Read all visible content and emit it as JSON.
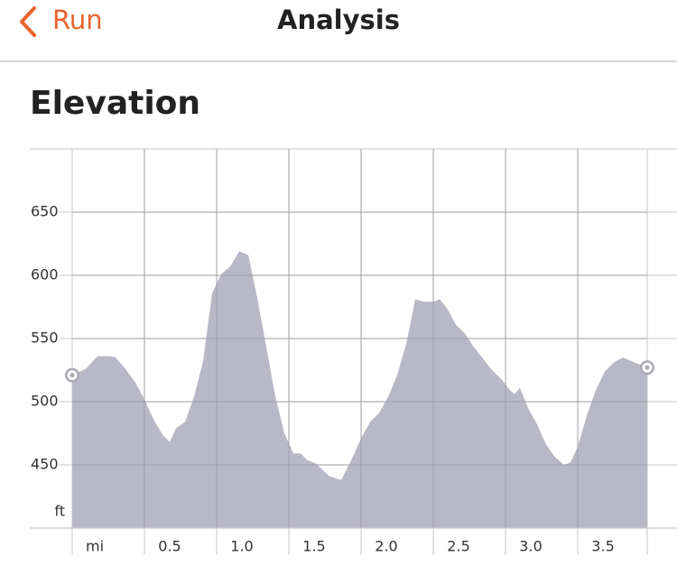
{
  "header": {
    "back": "Run",
    "title": "Analysis"
  },
  "section_title": "Elevation",
  "chart_data": {
    "type": "area",
    "x": [
      0,
      0.094,
      0.175,
      0.263,
      0.3,
      0.375,
      0.438,
      0.5,
      0.563,
      0.625,
      0.675,
      0.719,
      0.781,
      0.844,
      0.906,
      0.969,
      1.031,
      1.094,
      1.156,
      1.219,
      1.281,
      1.344,
      1.406,
      1.469,
      1.531,
      1.581,
      1.625,
      1.688,
      1.781,
      1.863,
      1.925,
      2.0,
      2.063,
      2.125,
      2.188,
      2.25,
      2.313,
      2.375,
      2.438,
      2.5,
      2.544,
      2.594,
      2.656,
      2.719,
      2.781,
      2.844,
      2.906,
      2.969,
      3.031,
      3.063,
      3.1,
      3.156,
      3.219,
      3.281,
      3.344,
      3.406,
      3.45,
      3.5,
      3.563,
      3.625,
      3.688,
      3.75,
      3.813,
      3.875,
      3.938,
      3.981
    ],
    "values": [
      521,
      526,
      536,
      536,
      535,
      525,
      515,
      502,
      486,
      474,
      468,
      479,
      484,
      504,
      532,
      586,
      601,
      607,
      619,
      616,
      582,
      543,
      504,
      475,
      459,
      459,
      454,
      451,
      441,
      438,
      452,
      471,
      484,
      491,
      504,
      521,
      546,
      581,
      579,
      579,
      581,
      574,
      561,
      554,
      543,
      534,
      525,
      518,
      509,
      506,
      511,
      495,
      482,
      466,
      456,
      450,
      452,
      464,
      489,
      509,
      524,
      531,
      535,
      532,
      529,
      527
    ],
    "color": "#b9b8c6",
    "x_unit": "mi",
    "y_unit": "ft",
    "xlim": [
      0,
      3.981
    ],
    "ylim": [
      400,
      700
    ],
    "xticks": [
      {
        "value": 0.5,
        "label": "0.5"
      },
      {
        "value": 1,
        "label": "1.0"
      },
      {
        "value": 1.5,
        "label": "1.5"
      },
      {
        "value": 2,
        "label": "2.0"
      },
      {
        "value": 2.5,
        "label": "2.5"
      },
      {
        "value": 3,
        "label": "3.0"
      },
      {
        "value": 3.5,
        "label": "3.5"
      }
    ],
    "yticks": [
      450,
      500,
      550,
      600,
      650
    ],
    "grid": true
  }
}
